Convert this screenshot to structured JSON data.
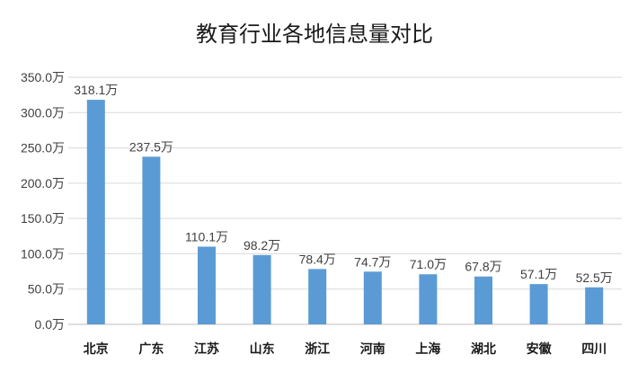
{
  "chart_data": {
    "type": "bar",
    "title": "教育行业各地信息量对比",
    "xlabel": "",
    "ylabel": "",
    "categories": [
      "北京",
      "广东",
      "江苏",
      "山东",
      "浙江",
      "河南",
      "上海",
      "湖北",
      "安徽",
      "四川"
    ],
    "values": [
      318.1,
      237.5,
      110.1,
      98.2,
      78.4,
      74.7,
      71.0,
      67.8,
      57.1,
      52.5
    ],
    "data_labels": [
      "318.1万",
      "237.5万",
      "110.1万",
      "98.2万",
      "78.4万",
      "74.7万",
      "71.0万",
      "67.8万",
      "57.1万",
      "52.5万"
    ],
    "y_ticks": [
      0,
      50,
      100,
      150,
      200,
      250,
      300,
      350
    ],
    "y_tick_labels": [
      "0.0万",
      "50.0万",
      "100.0万",
      "150.0万",
      "200.0万",
      "250.0万",
      "300.0万",
      "350.0万"
    ],
    "ylim": [
      0,
      350
    ],
    "grid": true,
    "legend": "none",
    "bar_color": "#5b9bd5"
  }
}
